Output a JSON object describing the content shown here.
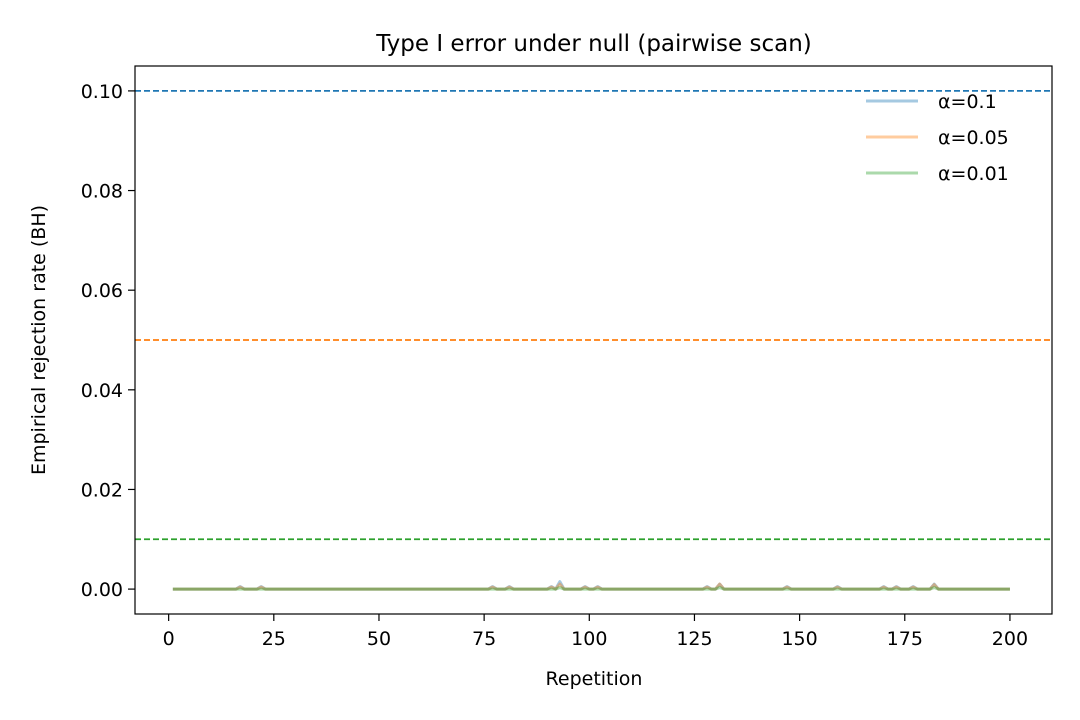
{
  "chart_data": {
    "type": "line",
    "title": "Type I error under null (pairwise scan)",
    "xlabel": "Repetition",
    "ylabel": "Empirical rejection rate (BH)",
    "xlim": [
      -8,
      210
    ],
    "ylim": [
      -0.005,
      0.105
    ],
    "xticks": [
      0,
      25,
      50,
      75,
      100,
      125,
      150,
      175,
      200
    ],
    "xtick_labels": [
      "0",
      "25",
      "50",
      "75",
      "100",
      "125",
      "150",
      "175",
      "200"
    ],
    "yticks": [
      0.0,
      0.02,
      0.04,
      0.06,
      0.08,
      0.1
    ],
    "ytick_labels": [
      "0.00",
      "0.02",
      "0.04",
      "0.06",
      "0.08",
      "0.10"
    ],
    "grid": false,
    "legend_position": "top-right",
    "x_range": [
      1,
      200
    ],
    "series": [
      {
        "name": "α=0.1",
        "color": "#1f77b4",
        "threshold": 0.1,
        "nonzero": [
          [
            17,
            0.0005
          ],
          [
            22,
            0.0005
          ],
          [
            77,
            0.0005
          ],
          [
            81,
            0.0005
          ],
          [
            91,
            0.0005
          ],
          [
            93,
            0.0015
          ],
          [
            99,
            0.0005
          ],
          [
            102,
            0.0005
          ],
          [
            128,
            0.0005
          ],
          [
            131,
            0.001
          ],
          [
            147,
            0.0005
          ],
          [
            159,
            0.0005
          ],
          [
            170,
            0.0005
          ],
          [
            173,
            0.0005
          ],
          [
            177,
            0.0005
          ],
          [
            182,
            0.001
          ]
        ]
      },
      {
        "name": "α=0.05",
        "color": "#ff7f0e",
        "threshold": 0.05,
        "nonzero": [
          [
            17,
            0.0004
          ],
          [
            22,
            0.0004
          ],
          [
            77,
            0.0004
          ],
          [
            81,
            0.0004
          ],
          [
            91,
            0.0004
          ],
          [
            93,
            0.001
          ],
          [
            99,
            0.0004
          ],
          [
            102,
            0.0004
          ],
          [
            128,
            0.0004
          ],
          [
            131,
            0.001
          ],
          [
            147,
            0.0004
          ],
          [
            159,
            0.0004
          ],
          [
            170,
            0.0004
          ],
          [
            173,
            0.0004
          ],
          [
            177,
            0.0004
          ],
          [
            182,
            0.0009
          ]
        ]
      },
      {
        "name": "α=0.01",
        "color": "#2ca02c",
        "threshold": 0.01,
        "nonzero": [
          [
            93,
            0.0003
          ],
          [
            131,
            0.0003
          ],
          [
            182,
            0.0003
          ]
        ]
      }
    ]
  }
}
